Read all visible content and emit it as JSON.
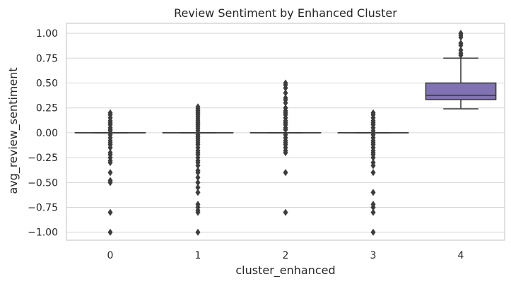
{
  "chart_data": {
    "type": "box",
    "title": "Review Sentiment by Enhanced Cluster",
    "xlabel": "cluster_enhanced",
    "ylabel": "avg_review_sentiment",
    "categories": [
      "0",
      "1",
      "2",
      "3",
      "4"
    ],
    "ylim": [
      -1.08,
      1.1
    ],
    "yticks": [
      1.0,
      0.75,
      0.5,
      0.25,
      0.0,
      -0.25,
      -0.5,
      -0.75,
      -1.0
    ],
    "ytick_labels": [
      "1.00",
      "0.75",
      "0.50",
      "0.25",
      "0.00",
      "−0.25",
      "−0.50",
      "−0.75",
      "−1.00"
    ],
    "grid": true,
    "boxes": [
      {
        "category": "0",
        "q1": 0.0,
        "median": 0.0,
        "q3": 0.0,
        "whisker_low": 0.0,
        "whisker_high": 0.0,
        "outliers": [
          0.2,
          0.18,
          0.15,
          0.12,
          0.1,
          0.08,
          0.05,
          0.03,
          0.02,
          -0.02,
          -0.05,
          -0.08,
          -0.1,
          -0.12,
          -0.15,
          -0.2,
          -0.22,
          -0.25,
          -0.28,
          -0.3,
          -0.4,
          -0.48,
          -0.5,
          -0.8,
          -1.0
        ]
      },
      {
        "category": "1",
        "q1": 0.0,
        "median": 0.0,
        "q3": 0.0,
        "whisker_low": 0.0,
        "whisker_high": 0.0,
        "outliers": [
          0.26,
          0.24,
          0.22,
          0.2,
          0.18,
          0.16,
          0.14,
          0.12,
          0.1,
          0.08,
          0.06,
          0.04,
          0.02,
          -0.02,
          -0.04,
          -0.06,
          -0.08,
          -0.1,
          -0.12,
          -0.15,
          -0.18,
          -0.2,
          -0.22,
          -0.25,
          -0.28,
          -0.3,
          -0.33,
          -0.38,
          -0.4,
          -0.45,
          -0.5,
          -0.55,
          -0.6,
          -0.72,
          -0.75,
          -0.78,
          -0.8,
          -1.0
        ]
      },
      {
        "category": "2",
        "q1": 0.0,
        "median": 0.0,
        "q3": 0.0,
        "whisker_low": 0.0,
        "whisker_high": 0.0,
        "outliers": [
          0.5,
          0.48,
          0.45,
          0.4,
          0.35,
          0.33,
          0.3,
          0.25,
          0.22,
          0.2,
          0.18,
          0.15,
          0.12,
          0.1,
          0.08,
          0.05,
          0.03,
          -0.02,
          -0.05,
          -0.08,
          -0.1,
          -0.12,
          -0.15,
          -0.18,
          -0.2,
          -0.4,
          -0.8
        ]
      },
      {
        "category": "3",
        "q1": 0.0,
        "median": 0.0,
        "q3": 0.0,
        "whisker_low": 0.0,
        "whisker_high": 0.0,
        "outliers": [
          0.2,
          0.18,
          0.15,
          0.12,
          0.1,
          0.08,
          0.05,
          0.02,
          -0.02,
          -0.05,
          -0.08,
          -0.1,
          -0.12,
          -0.15,
          -0.18,
          -0.2,
          -0.22,
          -0.25,
          -0.3,
          -0.33,
          -0.4,
          -0.6,
          -0.72,
          -0.75,
          -0.8,
          -1.0
        ]
      },
      {
        "category": "4",
        "q1": 0.333,
        "median": 0.375,
        "q3": 0.5,
        "whisker_low": 0.24,
        "whisker_high": 0.75,
        "outliers": [
          1.0,
          0.98,
          0.96,
          0.9,
          0.88,
          0.83,
          0.8,
          0.78
        ]
      }
    ],
    "colors": {
      "box_fill": "#8172b3",
      "box_edge": "#3d3d3d",
      "outlier": "#3d3d3d",
      "grid": "#d6d6d6",
      "spine": "#cccccc",
      "text": "#262626"
    }
  }
}
